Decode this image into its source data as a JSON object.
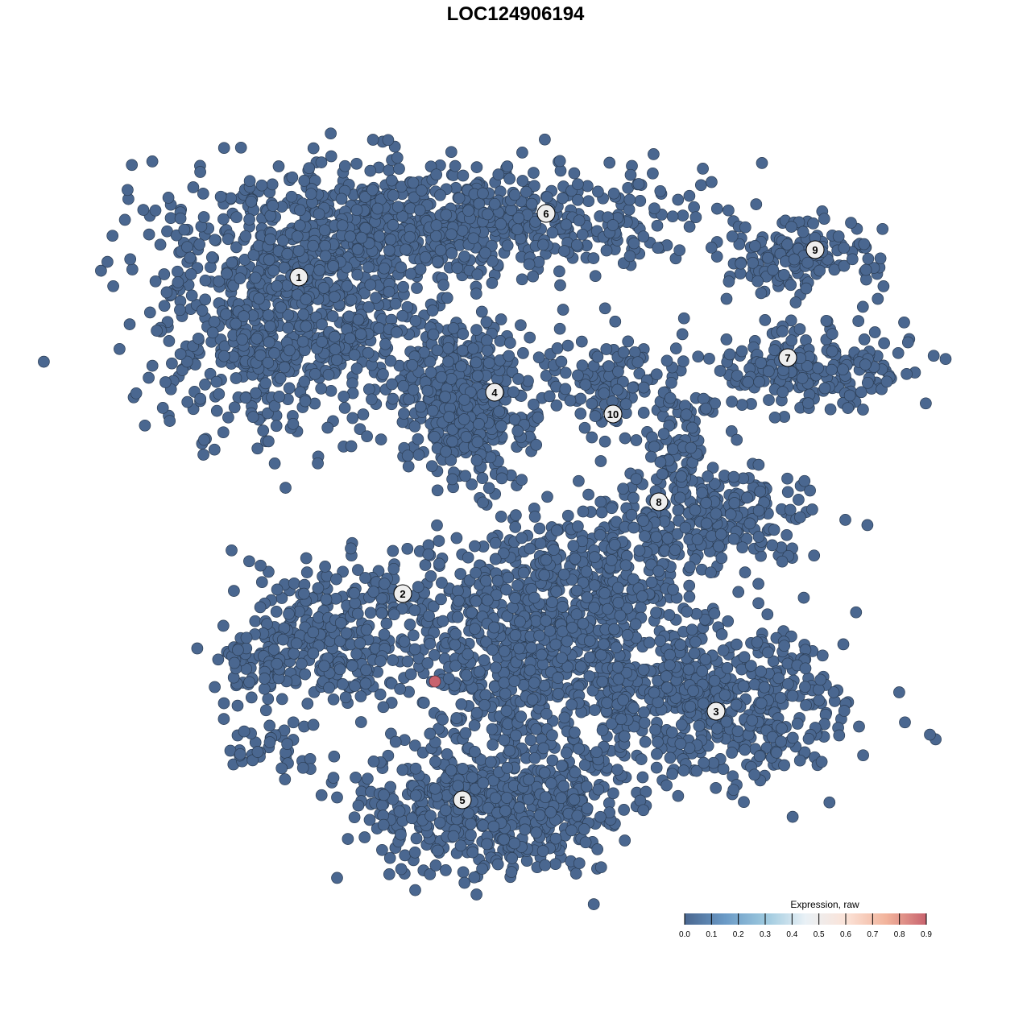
{
  "chart_data": {
    "type": "scatter",
    "title": "LOC124906194",
    "xlabel": "",
    "ylabel": "",
    "axes_visible": false,
    "grid": false,
    "point_color": "#4a6790",
    "point_stroke": "#2c3e55",
    "highlight_color": "#c8636e",
    "clusters": [
      "1",
      "2",
      "3",
      "4",
      "5",
      "6",
      "7",
      "8",
      "9",
      "10"
    ],
    "expressing_points": [
      {
        "cluster": "2",
        "value": 0.9
      }
    ],
    "default_value": 0.0,
    "legend": {
      "title": "Expression, raw",
      "placement": "bottom-right",
      "ticks": [
        "0.0",
        "0.1",
        "0.2",
        "0.3",
        "0.4",
        "0.5",
        "0.6",
        "0.7",
        "0.8",
        "0.9"
      ],
      "range": [
        0,
        0.9
      ],
      "colors": [
        "#4a6790",
        "#6a9ac6",
        "#9cc8de",
        "#e9f1f6",
        "#fbe3d8",
        "#f2b49c",
        "#c8636e"
      ]
    }
  }
}
